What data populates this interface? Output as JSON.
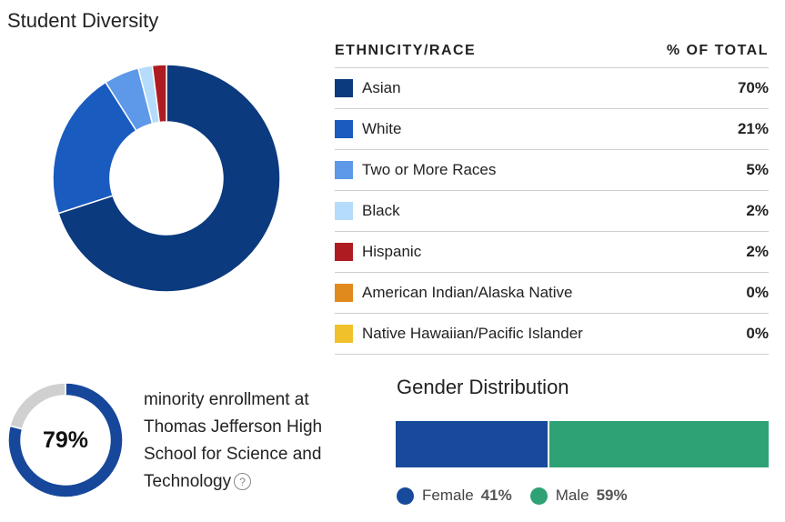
{
  "diversity": {
    "title": "Student Diversity",
    "table_header": {
      "label": "ETHNICITY/RACE",
      "value": "% OF TOTAL"
    }
  },
  "chart_data": [
    {
      "type": "pie",
      "title": "Student Diversity",
      "style": "donut",
      "legend": "table-right",
      "categories": [
        "Asian",
        "White",
        "Two or More Races",
        "Black",
        "Hispanic",
        "American Indian/Alaska Native",
        "Native Hawaiian/Pacific Islander"
      ],
      "values": [
        70,
        21,
        5,
        2,
        2,
        0,
        0
      ],
      "labels": [
        "70%",
        "21%",
        "5%",
        "2%",
        "2%",
        "0%",
        "0%"
      ],
      "colors": [
        "#0b3a7e",
        "#1a5bbf",
        "#5e98e8",
        "#b5dcfa",
        "#ae1c22",
        "#e08a1e",
        "#f0c12a"
      ]
    },
    {
      "type": "pie",
      "style": "donut",
      "values": [
        79,
        21
      ],
      "label": "79%",
      "colors": [
        "#16479a",
        "#d0d0d0"
      ]
    },
    {
      "type": "bar",
      "title": "Gender Distribution",
      "orientation": "horizontal-stacked",
      "legend": "bottom",
      "categories": [
        "Female",
        "Male"
      ],
      "values": [
        41,
        59
      ],
      "labels": [
        "41%",
        "59%"
      ],
      "colors": [
        "#174a9b",
        "#2ea274"
      ]
    }
  ],
  "minority": {
    "lines": [
      "minority enrollment at",
      "Thomas Jefferson High",
      "School for Science and",
      "Technology"
    ],
    "help_icon": "question-circle-icon",
    "help_glyph": "?"
  }
}
